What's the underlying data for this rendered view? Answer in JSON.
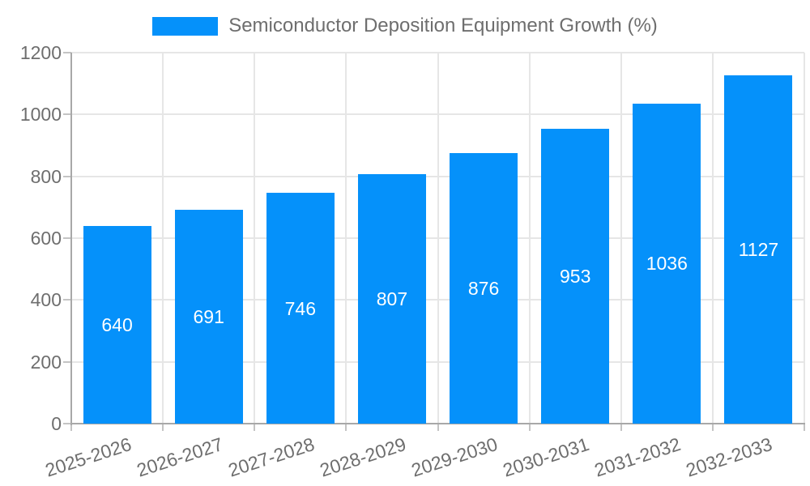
{
  "chart_data": {
    "type": "bar",
    "title": "",
    "legend_position": "top",
    "categories": [
      "2025-2026",
      "2026-2027",
      "2027-2028",
      "2028-2029",
      "2029-2030",
      "2030-2031",
      "2031-2032",
      "2032-2033"
    ],
    "series": [
      {
        "name": "Semiconductor Deposition Equipment Growth (%)",
        "values": [
          640,
          691,
          746,
          807,
          876,
          953,
          1036,
          1127
        ]
      }
    ],
    "value_labels": [
      "640",
      "691",
      "746",
      "807",
      "876",
      "953",
      "1036",
      "1127"
    ],
    "value_labels_position": "center-of-bar",
    "xlabel": "",
    "ylabel": "",
    "ylim": [
      0,
      1200
    ],
    "yticks": [
      0,
      200,
      400,
      600,
      800,
      1000,
      1200
    ],
    "grid": true,
    "colors": {
      "bar": "#0591fa",
      "value_label_text": "#ffffff",
      "tick_text": "#6e6e6e",
      "legend_text": "#6e6e6e",
      "grid_line": "#e6e6e6",
      "axis_line": "#a8a8a8",
      "tick_mark": "#c4c4c4",
      "background": "#ffffff"
    }
  }
}
